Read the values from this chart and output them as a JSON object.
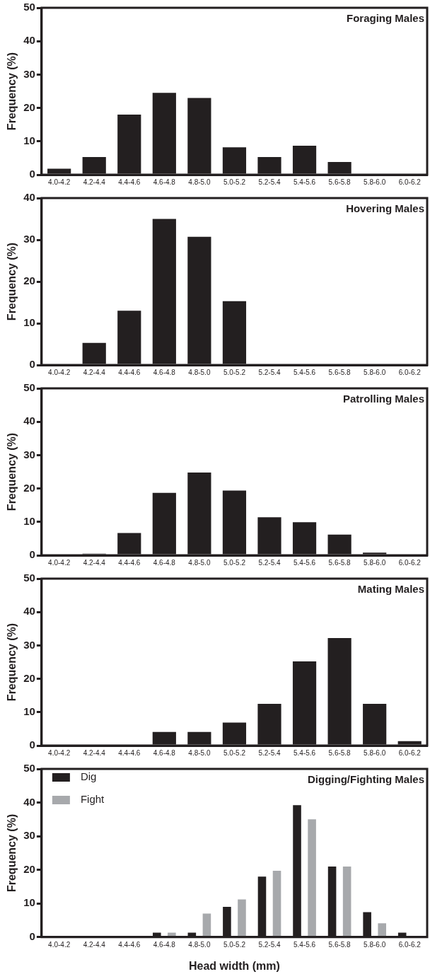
{
  "chart_data": [
    {
      "type": "bar",
      "title": "Foraging Males",
      "ylabel": "Frequency (%)",
      "categories": [
        "4.0-4.2",
        "4.2-4.4",
        "4.4-4.6",
        "4.6-4.8",
        "4.8-5.0",
        "5.0-5.2",
        "5.2-5.4",
        "5.4-5.6",
        "5.6-5.8",
        "5.8-6.0",
        "6.0-6.2"
      ],
      "values": [
        1.8,
        5.3,
        18,
        24.5,
        23,
        8.2,
        5.3,
        8.7,
        3.8,
        0,
        0
      ],
      "color": "#231f20",
      "ylim": [
        0,
        50
      ],
      "yticks": [
        0,
        10,
        20,
        30,
        40,
        50
      ],
      "grid": false
    },
    {
      "type": "bar",
      "title": "Hovering Males",
      "ylabel": "Frequency (%)",
      "categories": [
        "4.0-4.2",
        "4.2-4.4",
        "4.4-4.6",
        "4.6-4.8",
        "4.8-5.0",
        "5.0-5.2",
        "5.2-5.4",
        "5.4-5.6",
        "5.6-5.8",
        "5.8-6.0",
        "6.0-6.2"
      ],
      "values": [
        0,
        5.3,
        13,
        35,
        30.7,
        15.3,
        0,
        0,
        0,
        0,
        0
      ],
      "color": "#231f20",
      "ylim": [
        0,
        40
      ],
      "yticks": [
        0,
        10,
        20,
        30,
        40
      ],
      "grid": false
    },
    {
      "type": "bar",
      "title": "Patrolling Males",
      "ylabel": "Frequency (%)",
      "categories": [
        "4.0-4.2",
        "4.2-4.4",
        "4.4-4.6",
        "4.6-4.8",
        "4.8-5.0",
        "5.0-5.2",
        "5.2-5.4",
        "5.4-5.6",
        "5.6-5.8",
        "5.8-6.0",
        "6.0-6.2"
      ],
      "values": [
        0.3,
        0.5,
        6.7,
        18.7,
        24.8,
        19.4,
        11.4,
        9.9,
        6.2,
        0.8,
        0
      ],
      "color": "#231f20",
      "ylim": [
        0,
        50
      ],
      "yticks": [
        0,
        10,
        20,
        30,
        40,
        50
      ],
      "grid": false
    },
    {
      "type": "bar",
      "title": "Mating Males",
      "ylabel": "Frequency (%)",
      "categories": [
        "4.0-4.2",
        "4.2-4.4",
        "4.4-4.6",
        "4.6-4.8",
        "4.8-5.0",
        "5.0-5.2",
        "5.2-5.4",
        "5.4-5.6",
        "5.6-5.8",
        "5.8-6.0",
        "6.0-6.2"
      ],
      "values": [
        0,
        0,
        0,
        4.1,
        4.1,
        6.9,
        12.5,
        25.2,
        32.2,
        12.5,
        1.3
      ],
      "color": "#231f20",
      "ylim": [
        0,
        50
      ],
      "yticks": [
        0,
        10,
        20,
        30,
        40,
        50
      ],
      "grid": false
    },
    {
      "type": "bar",
      "title": "Digging/Fighting Males",
      "xlabel": "Head width (mm)",
      "ylabel": "Frequency (%)",
      "categories": [
        "4.0-4.2",
        "4.2-4.4",
        "4.4-4.6",
        "4.6-4.8",
        "4.8-5.0",
        "5.0-5.2",
        "5.2-5.4",
        "5.4-5.6",
        "5.6-5.8",
        "5.8-6.0",
        "6.0-6.2"
      ],
      "series": [
        {
          "name": "Dig",
          "color": "#231f20",
          "values": [
            0,
            0,
            0,
            1.3,
            1.3,
            9,
            18,
            39.2,
            21,
            7.4,
            1.3
          ]
        },
        {
          "name": "Fight",
          "color": "#a7a9ac",
          "values": [
            0,
            0,
            0,
            1.3,
            7,
            11.2,
            19.7,
            35,
            21,
            4.1,
            0
          ]
        }
      ],
      "ylim": [
        0,
        50
      ],
      "yticks": [
        0,
        10,
        20,
        30,
        40,
        50
      ],
      "grid": false,
      "legend": "top left"
    }
  ]
}
